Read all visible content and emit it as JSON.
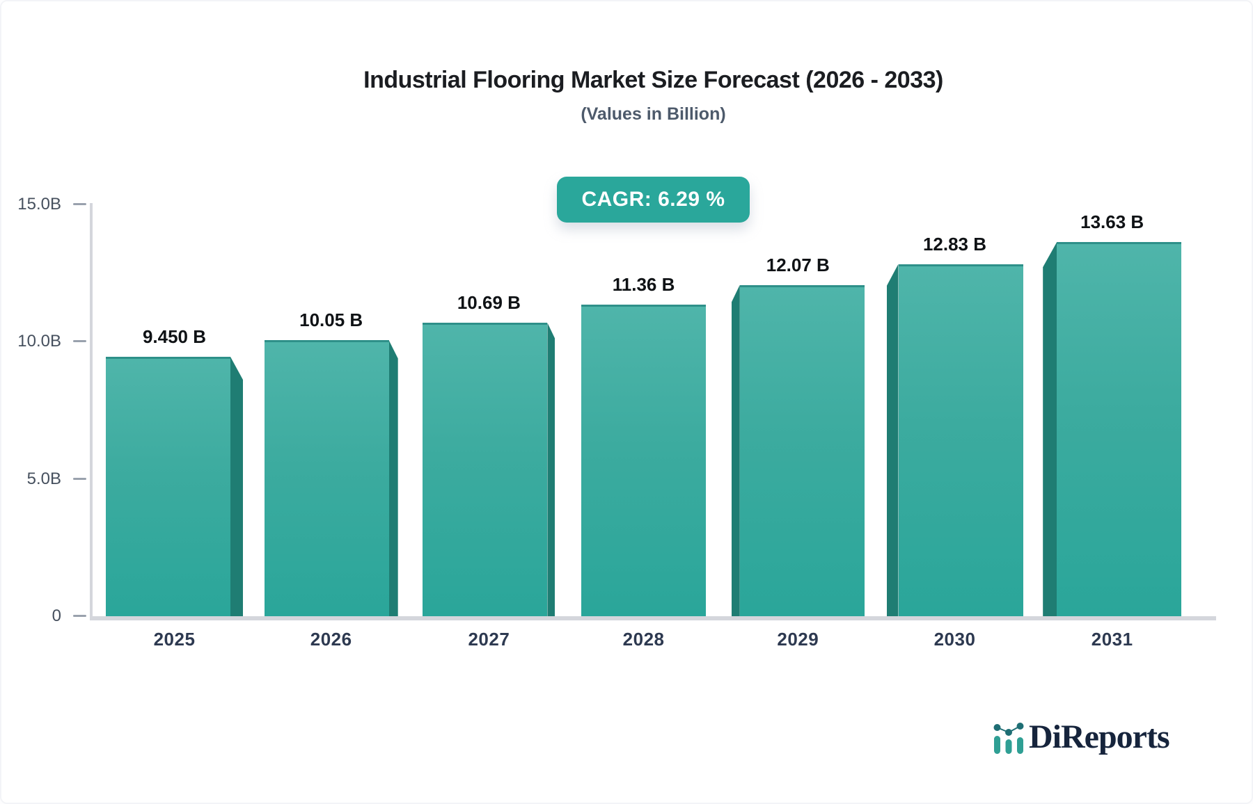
{
  "chart_data": {
    "type": "bar",
    "title": "Industrial Flooring Market Size Forecast (2026 - 2033)",
    "subtitle": "(Values in Billion)",
    "cagr_badge": "CAGR: 6.29 %",
    "categories": [
      "2025",
      "2026",
      "2027",
      "2028",
      "2029",
      "2030",
      "2031"
    ],
    "values": [
      9.45,
      10.05,
      10.69,
      11.36,
      12.07,
      12.83,
      13.63
    ],
    "value_labels": [
      "9.450 B",
      "10.05 B",
      "10.69 B",
      "11.36 B",
      "12.07 B",
      "12.83 B",
      "13.63 B"
    ],
    "y_axis": {
      "min": 0,
      "max": 15,
      "ticks": [
        {
          "value": 15,
          "label": "15.0B"
        },
        {
          "value": 10,
          "label": "10.0B"
        },
        {
          "value": 5,
          "label": "5.0B"
        },
        {
          "value": 0,
          "label": "0"
        }
      ]
    },
    "grid": "off",
    "legend": "none"
  },
  "branding": {
    "logo_text": "DiReports",
    "logo_icon": "mini-bar-chart-icon"
  },
  "colors": {
    "bar_face_top": "#4fb5aa",
    "bar_face_mid": "#3cab9f",
    "bar_face_bottom": "#2aa69a",
    "bar_top_edge": "#2e9089",
    "bar_side": "#1f7d73",
    "badge_bg": "#2aa79b",
    "badge_text": "#ffffff",
    "axis_line": "#d4d6dc",
    "tick_dash": "#99a1ad",
    "y_label": "#46505e",
    "x_label": "#2d3950",
    "value_label": "#0f1215",
    "title": "#1b1d21",
    "subtitle": "#4d5a6b",
    "logo_text_color": "#16243c",
    "logo_teal": "#2f9f94",
    "logo_dot": "#1e6e74"
  }
}
